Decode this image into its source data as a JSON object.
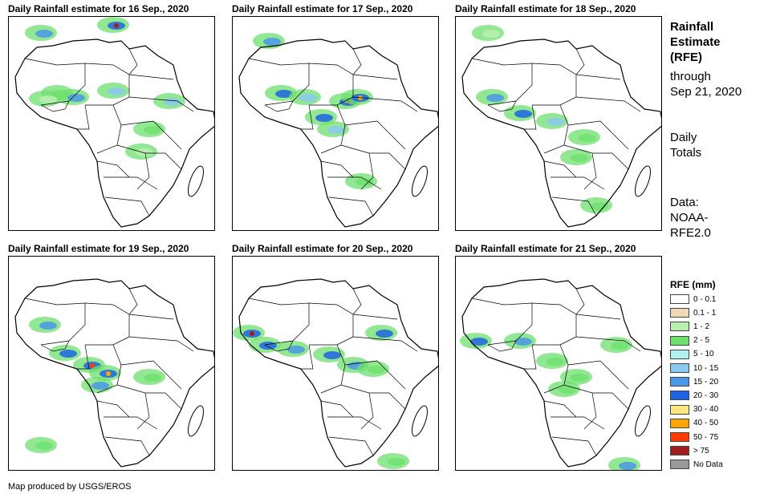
{
  "panels": [
    {
      "title": "Daily Rainfall estimate for 16 Sep., 2020",
      "day": 16
    },
    {
      "title": "Daily Rainfall estimate for 17 Sep., 2020",
      "day": 17
    },
    {
      "title": "Daily Rainfall estimate for 18 Sep., 2020",
      "day": 18
    },
    {
      "title": "Daily Rainfall estimate for 19 Sep., 2020",
      "day": 19
    },
    {
      "title": "Daily Rainfall estimate for 20 Sep., 2020",
      "day": 20
    },
    {
      "title": "Daily Rainfall estimate for 21 Sep., 2020",
      "day": 21
    }
  ],
  "info": {
    "title_lines": [
      "Rainfall",
      "Estimate",
      "(RFE)"
    ],
    "through_lines": [
      "through",
      "Sep 21, 2020"
    ],
    "totals_lines": [
      "Daily",
      "Totals"
    ],
    "data_lines": [
      "Data:",
      "NOAA-",
      "RFE2.0"
    ]
  },
  "legend": {
    "title": "RFE (mm)",
    "items": [
      {
        "label": "0 - 0.1",
        "color": "#ffffff"
      },
      {
        "label": "0.1 - 1",
        "color": "#f0d9b5"
      },
      {
        "label": "1 - 2",
        "color": "#b8f0b0"
      },
      {
        "label": "2 - 5",
        "color": "#6ee06e"
      },
      {
        "label": "5 - 10",
        "color": "#b0f0f0"
      },
      {
        "label": "10 - 15",
        "color": "#8cc8f0"
      },
      {
        "label": "15 - 20",
        "color": "#4a96e8"
      },
      {
        "label": "20 - 30",
        "color": "#1e64e0"
      },
      {
        "label": "30 - 40",
        "color": "#ffe680"
      },
      {
        "label": "40 - 50",
        "color": "#ffa500"
      },
      {
        "label": "50 - 75",
        "color": "#ff3c00"
      },
      {
        "label": "> 75",
        "color": "#a01e1e"
      },
      {
        "label": "No Data",
        "color": "#999999"
      }
    ]
  },
  "footer": "Map produced by USGS/EROS"
}
